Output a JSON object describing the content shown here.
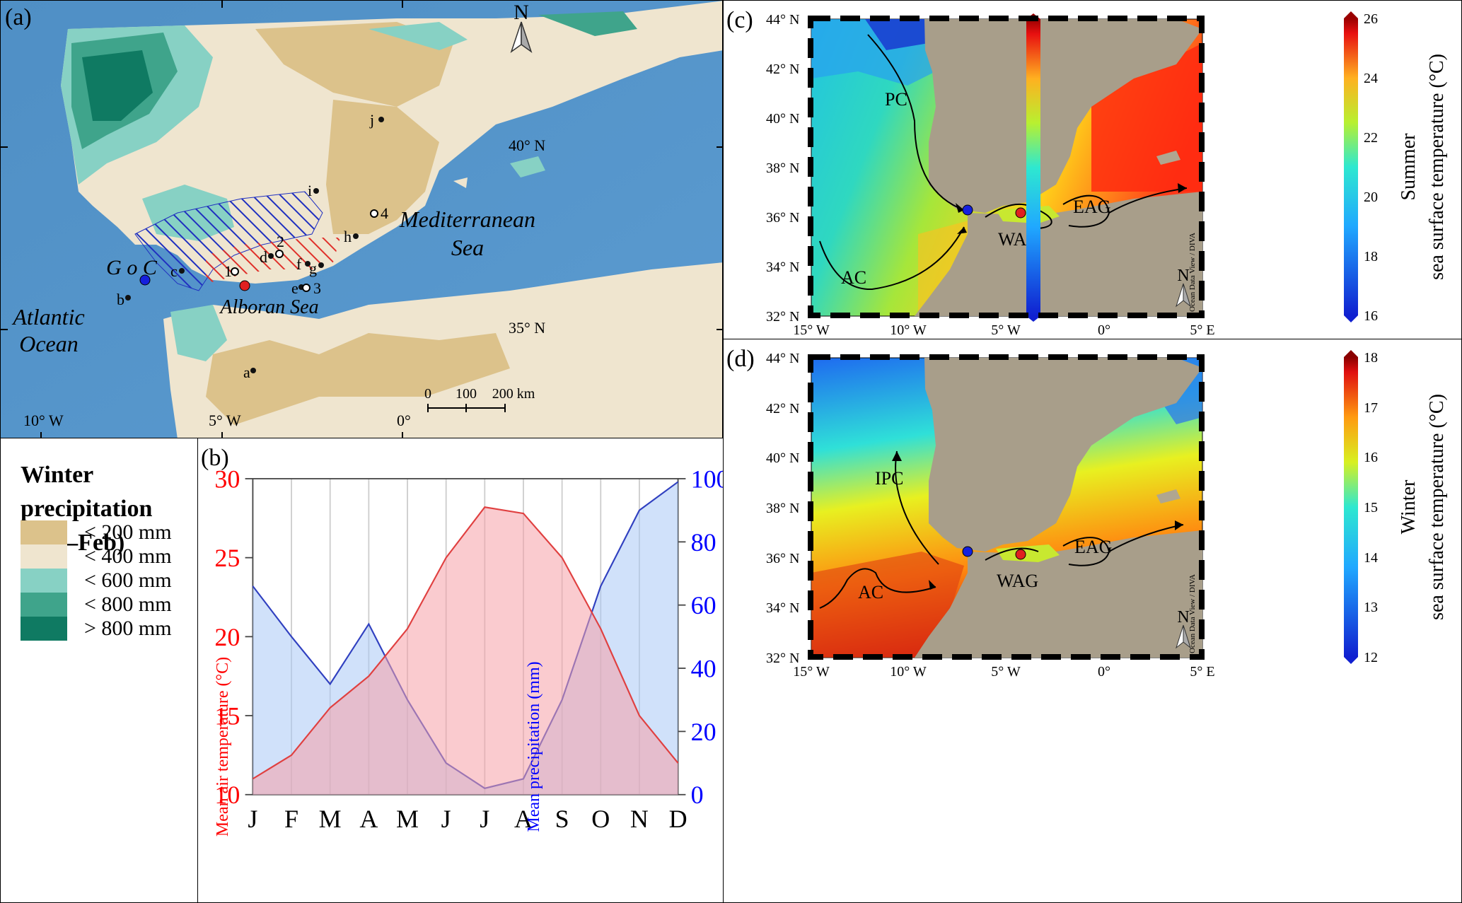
{
  "panel_a": {
    "label": "(a)",
    "north": "N",
    "seas": {
      "goc": "G o C",
      "atlantic_1": "Atlantic",
      "atlantic_2": "Ocean",
      "med_1": "Mediterranean",
      "med_2": "Sea",
      "alboran": "Alboran Sea"
    },
    "sites": [
      "a",
      "b",
      "c",
      "d",
      "e",
      "f",
      "g",
      "h",
      "i",
      "j"
    ],
    "numbered_sites": [
      "1",
      "2",
      "3",
      "4"
    ],
    "lat_labels": [
      "40° N",
      "35° N"
    ],
    "lon_labels": [
      "10° W",
      "5° W",
      "0°"
    ],
    "scale": {
      "t0": "0",
      "t1": "100",
      "t2": "200 km"
    }
  },
  "legend": {
    "title_1": "Winter precipitation",
    "title_2": "(Oct–Feb)",
    "items": [
      {
        "label": "< 200 mm",
        "color": "#dcc28b"
      },
      {
        "label": "< 400 mm",
        "color": "#efe5cf"
      },
      {
        "label": "< 600 mm",
        "color": "#87d1c4"
      },
      {
        "label": "< 800 mm",
        "color": "#3fa48b"
      },
      {
        "label": "> 800 mm",
        "color": "#0f7a62"
      }
    ]
  },
  "panel_b": {
    "label": "(b)",
    "chart_data": {
      "type": "area",
      "categories": [
        "J",
        "F",
        "M",
        "A",
        "M",
        "J",
        "J",
        "A",
        "S",
        "O",
        "N",
        "D"
      ],
      "series": [
        {
          "name": "Mean air temperature (°C)",
          "axis": "left",
          "color": "#ff0000",
          "values": [
            11,
            12.5,
            15.5,
            17.5,
            20.5,
            25,
            28.2,
            27.8,
            25,
            20.5,
            15,
            12
          ]
        },
        {
          "name": "Mean precipitation (mm)",
          "axis": "right",
          "color": "#0000ff",
          "values": [
            66,
            50,
            35,
            54,
            30,
            10,
            2,
            5,
            30,
            66,
            90,
            99
          ]
        }
      ],
      "ylim_left": [
        10,
        30
      ],
      "ylim_right": [
        0,
        100
      ],
      "yticks_left": [
        "10",
        "15",
        "20",
        "25",
        "30"
      ],
      "yticks_right": [
        "0",
        "20",
        "40",
        "60",
        "80",
        "100"
      ],
      "ylabel_left": "Mean air temperature (°C)",
      "ylabel_right": "Mean precipitation (mm)"
    }
  },
  "panel_c": {
    "label": "(c)",
    "currents": {
      "pc": "PC",
      "ac": "AC",
      "wag": "WAG",
      "eag": "EAG"
    },
    "credit": "Ocean Data View / DIVA",
    "north": "N",
    "colorbar": {
      "ticks": [
        "16",
        "18",
        "20",
        "22",
        "24",
        "26"
      ],
      "title_1": "Summer",
      "title_2": "sea surface temperature (°C)"
    }
  },
  "panel_d": {
    "label": "(d)",
    "currents": {
      "ipc": "IPC",
      "ac": "AC",
      "wag": "WAG",
      "eag": "EAG"
    },
    "credit": "Ocean Data View / DIVA",
    "north": "N",
    "colorbar": {
      "ticks": [
        "12",
        "13",
        "14",
        "15",
        "16",
        "17",
        "18"
      ],
      "title_1": "Winter",
      "title_2": "sea surface temperature (°C)"
    }
  },
  "map_axes": {
    "lat_labels": [
      "44° N",
      "42° N",
      "40° N",
      "38° N",
      "36° N",
      "34° N",
      "32° N"
    ],
    "lon_labels": [
      "15° W",
      "10° W",
      "5° W",
      "0°",
      "5° E"
    ]
  }
}
